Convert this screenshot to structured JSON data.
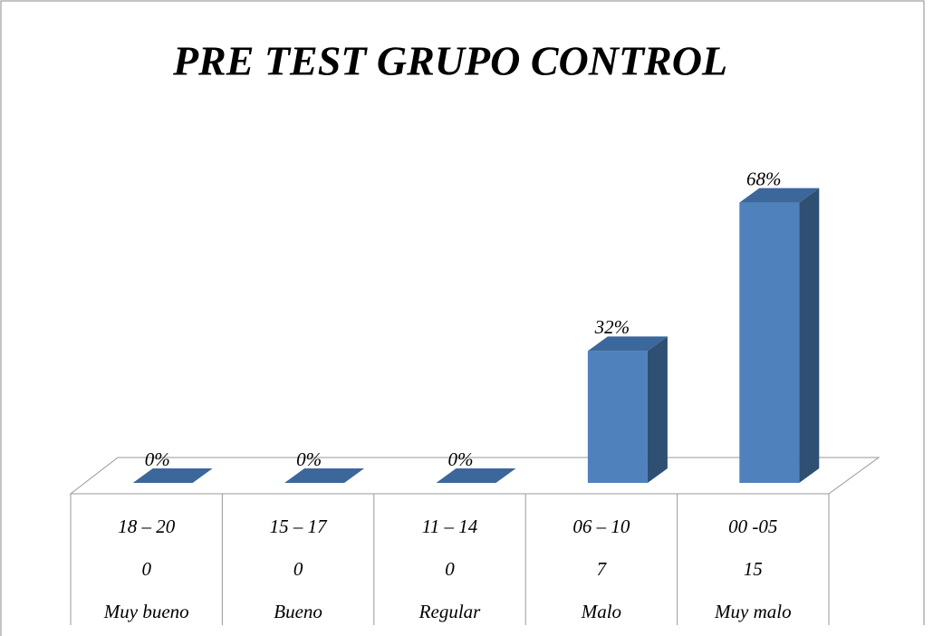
{
  "chart_data": {
    "type": "bar3d",
    "title": "PRE  TEST GRUPO CONTROL",
    "ranges": [
      "18 – 20",
      "15 – 17",
      "11 – 14",
      "06 – 10",
      "00 -05"
    ],
    "counts": [
      0,
      0,
      0,
      7,
      15
    ],
    "categories": [
      "Muy bueno",
      "Bueno",
      "Regular",
      "Malo",
      "Muy malo"
    ],
    "values": [
      0,
      0,
      0,
      32,
      68
    ],
    "value_labels": [
      "0%",
      "0%",
      "0%",
      "32%",
      "68%"
    ],
    "color": "#4f81bd"
  }
}
